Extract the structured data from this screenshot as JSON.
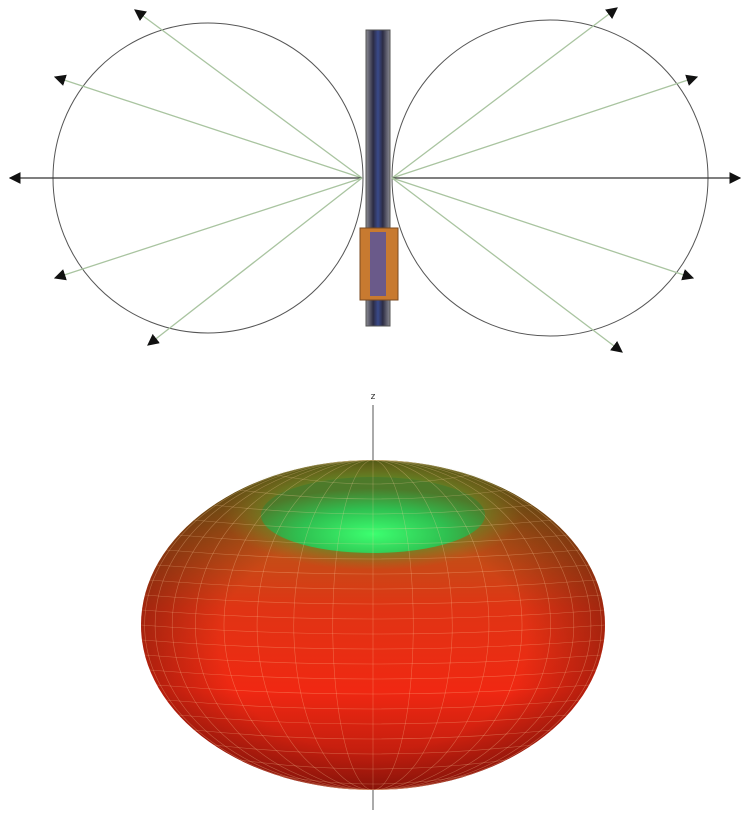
{
  "axis_label": "z"
}
